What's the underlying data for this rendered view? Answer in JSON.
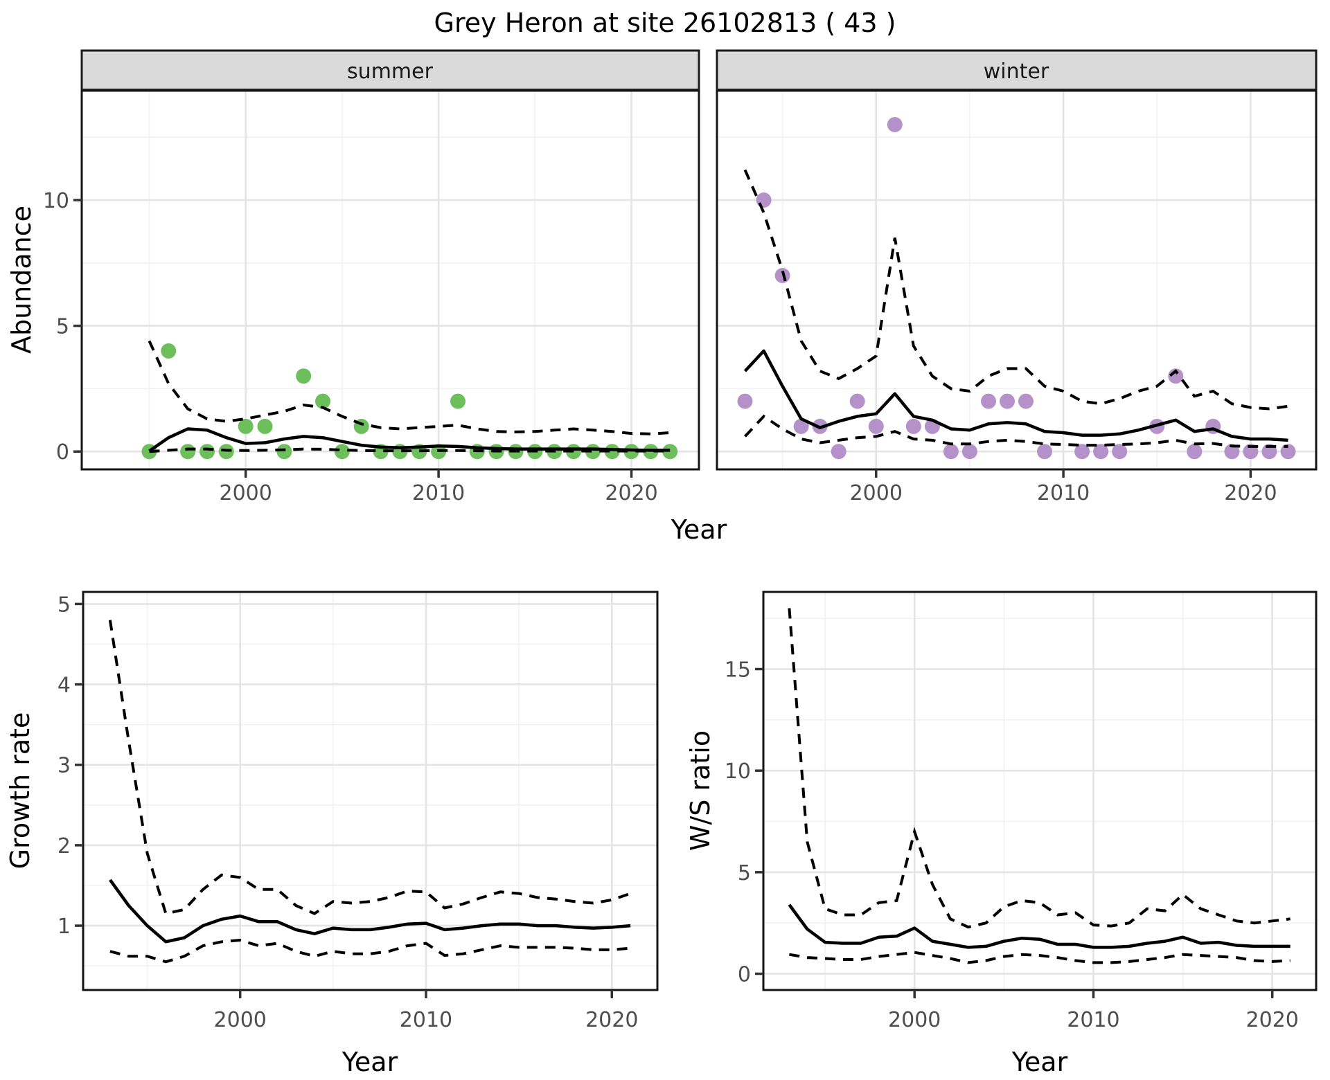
{
  "title": "Grey Heron at site 26102813 ( 43 )",
  "styles": {
    "observed_summer": "#6DBF5C",
    "observed_winter": "#B491C8",
    "fit_line": "#000000",
    "ci_line": "#000000",
    "grid_major": "#E4E4E4",
    "grid_minor": "#F1F1F1",
    "panel_bg": "#FFFFFF",
    "panel_border": "#141414",
    "strip_bg": "#DADADA",
    "strip_border": "#1A1A1A",
    "tick_text": "#4D4D4D",
    "tick_mark": "#333333"
  },
  "chart_data": [
    {
      "id": "abundance",
      "type": "line+scatter",
      "facets": [
        "summer",
        "winter"
      ],
      "xlabel": "Year",
      "ylabel": "Abundance",
      "xlim": [
        1991.5,
        2023.5
      ],
      "xticks": [
        2000,
        2010,
        2020
      ],
      "xminor": [
        1995,
        2005,
        2015
      ],
      "ylim": [
        -0.71,
        14.35
      ],
      "yticks": [
        0,
        5,
        10
      ],
      "yminor": [
        2.5,
        7.5,
        12.5
      ],
      "years": [
        1993,
        1994,
        1995,
        1996,
        1997,
        1998,
        1999,
        2000,
        2001,
        2002,
        2003,
        2004,
        2005,
        2006,
        2007,
        2008,
        2009,
        2010,
        2011,
        2012,
        2013,
        2014,
        2015,
        2016,
        2017,
        2018,
        2019,
        2020,
        2021,
        2022
      ],
      "summer": {
        "observed": [
          null,
          null,
          0,
          4,
          0,
          0,
          0,
          1,
          1,
          0,
          3,
          2,
          0,
          1,
          0,
          0,
          0,
          0,
          2,
          0,
          0,
          0,
          0,
          0,
          0,
          0,
          0,
          0,
          0,
          0
        ],
        "fit": [
          null,
          null,
          0.02,
          0.55,
          0.9,
          0.85,
          0.55,
          0.32,
          0.35,
          0.5,
          0.6,
          0.55,
          0.4,
          0.25,
          0.18,
          0.15,
          0.18,
          0.22,
          0.2,
          0.15,
          0.12,
          0.1,
          0.1,
          0.1,
          0.1,
          0.1,
          0.08,
          0.06,
          0.05,
          0.05
        ],
        "hi": [
          null,
          null,
          4.4,
          2.7,
          1.7,
          1.3,
          1.2,
          1.3,
          1.45,
          1.6,
          1.85,
          1.75,
          1.4,
          1.1,
          0.95,
          0.9,
          0.95,
          1.0,
          1.05,
          0.9,
          0.8,
          0.78,
          0.8,
          0.85,
          0.9,
          0.85,
          0.8,
          0.72,
          0.7,
          0.75
        ],
        "lo": [
          null,
          null,
          0.0,
          0.05,
          0.1,
          0.1,
          0.05,
          0.04,
          0.05,
          0.07,
          0.1,
          0.09,
          0.06,
          0.04,
          0.03,
          0.03,
          0.03,
          0.04,
          0.04,
          0.03,
          0.02,
          0.02,
          0.02,
          0.02,
          0.02,
          0.02,
          0.02,
          0.02,
          0.02,
          0.02
        ]
      },
      "winter": {
        "observed": [
          2,
          10,
          7,
          1,
          1,
          0,
          2,
          1,
          13,
          1,
          1,
          0,
          0,
          2,
          2,
          2,
          0,
          null,
          0,
          0,
          0,
          null,
          1,
          3,
          0,
          1,
          0,
          0,
          0,
          0
        ],
        "fit": [
          3.2,
          4.0,
          2.6,
          1.3,
          0.95,
          1.2,
          1.4,
          1.5,
          2.3,
          1.4,
          1.25,
          0.9,
          0.85,
          1.1,
          1.15,
          1.1,
          0.8,
          0.75,
          0.65,
          0.65,
          0.7,
          0.85,
          1.05,
          1.25,
          0.8,
          0.9,
          0.6,
          0.5,
          0.5,
          0.45
        ],
        "hi": [
          11.2,
          9.5,
          7.2,
          4.4,
          3.2,
          2.9,
          3.3,
          3.8,
          8.5,
          4.2,
          3.0,
          2.5,
          2.4,
          3.0,
          3.3,
          3.3,
          2.6,
          2.4,
          2.0,
          1.9,
          2.1,
          2.4,
          2.6,
          3.2,
          2.2,
          2.4,
          1.9,
          1.75,
          1.7,
          1.8
        ],
        "lo": [
          0.6,
          1.4,
          0.9,
          0.5,
          0.35,
          0.45,
          0.55,
          0.6,
          0.8,
          0.5,
          0.45,
          0.3,
          0.3,
          0.4,
          0.45,
          0.4,
          0.3,
          0.28,
          0.25,
          0.25,
          0.28,
          0.3,
          0.35,
          0.45,
          0.3,
          0.32,
          0.22,
          0.2,
          0.2,
          0.2
        ]
      }
    },
    {
      "id": "growth_rate",
      "type": "line",
      "xlabel": "Year",
      "ylabel": "Growth rate",
      "xlim": [
        1991.55,
        2022.45
      ],
      "xticks": [
        2000,
        2010,
        2020
      ],
      "xminor": [
        1995,
        2005,
        2015
      ],
      "ylim": [
        0.2,
        5.15
      ],
      "yticks": [
        1,
        2,
        3,
        4,
        5
      ],
      "yminor": [
        0.5,
        1.5,
        2.5,
        3.5,
        4.5
      ],
      "years": [
        1993,
        1994,
        1995,
        1996,
        1997,
        1998,
        1999,
        2000,
        2001,
        2002,
        2003,
        2004,
        2005,
        2006,
        2007,
        2008,
        2009,
        2010,
        2011,
        2012,
        2013,
        2014,
        2015,
        2016,
        2017,
        2018,
        2019,
        2020,
        2021
      ],
      "fit": [
        1.57,
        1.25,
        1.0,
        0.8,
        0.85,
        1.0,
        1.08,
        1.12,
        1.05,
        1.05,
        0.95,
        0.9,
        0.97,
        0.95,
        0.95,
        0.98,
        1.02,
        1.03,
        0.95,
        0.97,
        1.0,
        1.02,
        1.02,
        1.0,
        1.0,
        0.98,
        0.97,
        0.98,
        1.0
      ],
      "hi": [
        4.8,
        3.3,
        1.9,
        1.15,
        1.2,
        1.45,
        1.63,
        1.6,
        1.45,
        1.45,
        1.25,
        1.15,
        1.3,
        1.28,
        1.3,
        1.35,
        1.43,
        1.42,
        1.22,
        1.27,
        1.35,
        1.42,
        1.4,
        1.35,
        1.33,
        1.3,
        1.28,
        1.32,
        1.4
      ],
      "lo": [
        0.68,
        0.62,
        0.62,
        0.55,
        0.62,
        0.75,
        0.8,
        0.82,
        0.75,
        0.78,
        0.68,
        0.62,
        0.68,
        0.65,
        0.65,
        0.68,
        0.75,
        0.78,
        0.63,
        0.65,
        0.7,
        0.75,
        0.73,
        0.73,
        0.73,
        0.72,
        0.7,
        0.7,
        0.72
      ]
    },
    {
      "id": "ws_ratio",
      "type": "line",
      "xlabel": "Year",
      "ylabel": "W/S ratio",
      "xlim": [
        1991.55,
        2022.45
      ],
      "xticks": [
        2000,
        2010,
        2020
      ],
      "xminor": [
        1995,
        2005,
        2015
      ],
      "ylim": [
        -0.8,
        18.8
      ],
      "yticks": [
        0,
        5,
        10,
        15
      ],
      "yminor": [
        2.5,
        7.5,
        12.5,
        17.5
      ],
      "years": [
        1993,
        1994,
        1995,
        1996,
        1997,
        1998,
        1999,
        2000,
        2001,
        2002,
        2003,
        2004,
        2005,
        2006,
        2007,
        2008,
        2009,
        2010,
        2011,
        2012,
        2013,
        2014,
        2015,
        2016,
        2017,
        2018,
        2019,
        2020,
        2021
      ],
      "fit": [
        3.4,
        2.2,
        1.55,
        1.5,
        1.5,
        1.8,
        1.85,
        2.25,
        1.6,
        1.45,
        1.3,
        1.35,
        1.6,
        1.75,
        1.7,
        1.45,
        1.45,
        1.3,
        1.3,
        1.35,
        1.5,
        1.6,
        1.8,
        1.5,
        1.55,
        1.4,
        1.35,
        1.35,
        1.35
      ],
      "hi": [
        18.0,
        6.5,
        3.2,
        2.9,
        2.9,
        3.5,
        3.6,
        7.0,
        4.4,
        2.7,
        2.3,
        2.5,
        3.3,
        3.6,
        3.5,
        2.9,
        3.0,
        2.4,
        2.35,
        2.5,
        3.2,
        3.1,
        3.9,
        3.2,
        2.9,
        2.6,
        2.5,
        2.6,
        2.7
      ],
      "lo": [
        0.95,
        0.8,
        0.75,
        0.7,
        0.7,
        0.85,
        0.95,
        1.05,
        0.9,
        0.75,
        0.55,
        0.65,
        0.85,
        0.95,
        0.9,
        0.8,
        0.65,
        0.55,
        0.55,
        0.6,
        0.7,
        0.8,
        0.95,
        0.9,
        0.85,
        0.8,
        0.65,
        0.6,
        0.65
      ]
    }
  ]
}
